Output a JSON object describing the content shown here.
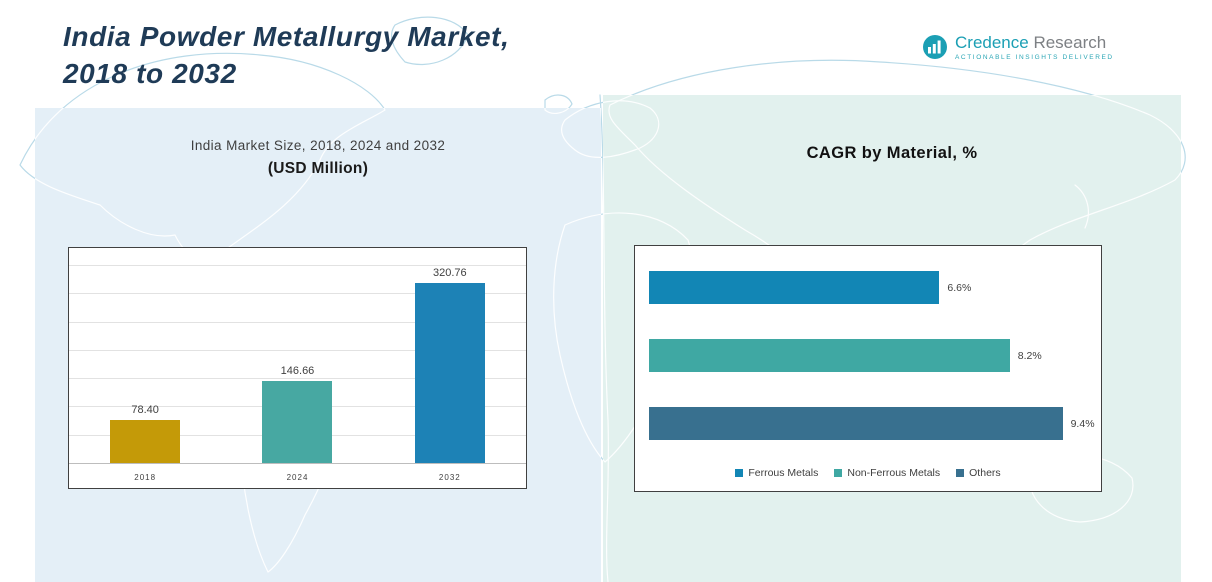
{
  "header": {
    "title_line1": "India Powder Metallurgy Market,",
    "title_line2": "2018 to 2032"
  },
  "logo": {
    "brand_primary": "Credence",
    "brand_secondary": "Research",
    "tagline": "Actionable Insights Delivered"
  },
  "colors": {
    "title_text": "#1f3b57",
    "brand_teal": "#1b9fb4",
    "brand_gray": "#7d8084",
    "left_panel": "#e4eff7",
    "right_panel": "#e2f1ee"
  },
  "chart_data": [
    {
      "type": "bar",
      "orientation": "vertical",
      "title": "India Market Size, 2018, 2024 and 2032",
      "subtitle": "(USD Million)",
      "categories": [
        "2018",
        "2024",
        "2032"
      ],
      "values": [
        78.4,
        146.66,
        320.76
      ],
      "value_labels": [
        "78.40",
        "146.66",
        "320.76"
      ],
      "bar_colors": [
        "#c49a08",
        "#47a8a2",
        "#1d82b6"
      ],
      "ylim": [
        0,
        350
      ],
      "grid_step": 50,
      "grid": "horizontal",
      "legend": []
    },
    {
      "type": "bar",
      "orientation": "horizontal",
      "title": "CAGR by Material, %",
      "categories": [
        "Ferrous Metals",
        "Non-Ferrous Metals",
        "Others"
      ],
      "values": [
        6.6,
        8.2,
        9.4
      ],
      "value_labels": [
        "6.6%",
        "8.2%",
        "9.4%"
      ],
      "bar_colors": [
        "#1286b5",
        "#3fa8a3",
        "#38708f"
      ],
      "xlim": [
        0,
        10
      ],
      "grid": "off",
      "legend": [
        "Ferrous Metals",
        "Non-Ferrous Metals",
        "Others"
      ],
      "legend_position": "bottom"
    }
  ]
}
